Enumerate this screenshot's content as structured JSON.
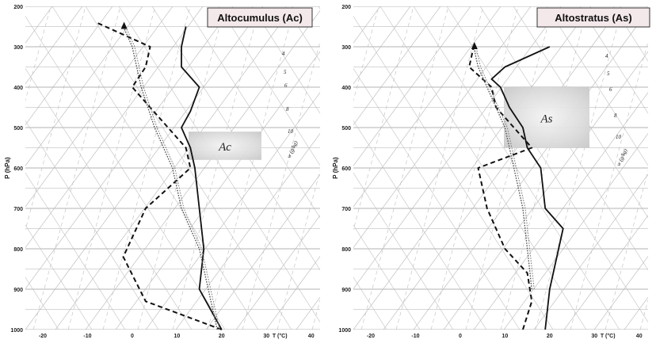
{
  "chart_data": [
    {
      "type": "line",
      "title": "Altocumulus (Ac)",
      "ylabel": "P (hPa)",
      "xlabel": "T (°C)",
      "x_ticks": [
        "-20",
        "-10",
        "0",
        "10",
        "20",
        "30",
        "40"
      ],
      "y_ticks": [
        "200",
        "300",
        "400",
        "500",
        "600",
        "700",
        "800",
        "900",
        "1000"
      ],
      "xlim": [
        -20,
        42
      ],
      "ylim": [
        1000,
        200
      ],
      "mixing_ratio_labels": [
        "4",
        "5",
        "6",
        "8",
        "10"
      ],
      "mixing_ratio_unit": "w (g/kg)",
      "cloud_label": "Ac",
      "cloud_layer_hpa": [
        510,
        580
      ],
      "series": [
        {
          "style": "solid",
          "x": [
            20,
            15,
            16,
            15,
            14,
            13,
            11,
            13,
            15,
            11,
            11,
            12
          ],
          "y": [
            1000,
            900,
            800,
            700,
            600,
            550,
            500,
            460,
            400,
            350,
            300,
            250
          ]
        },
        {
          "style": "dashed",
          "x": [
            20,
            3,
            -2,
            3,
            13,
            12,
            8,
            0,
            3,
            4,
            -8
          ],
          "y": [
            1000,
            930,
            820,
            700,
            600,
            550,
            500,
            400,
            350,
            300,
            240
          ]
        },
        {
          "style": "dotted",
          "x": [
            19,
            17,
            15,
            11,
            9,
            5,
            2,
            0,
            -2
          ],
          "y": [
            1000,
            900,
            800,
            700,
            600,
            500,
            400,
            300,
            250
          ]
        }
      ]
    },
    {
      "type": "line",
      "title": "Altostratus (As)",
      "ylabel": "P (hPa)",
      "xlabel": "T (°C)",
      "x_ticks": [
        "-20",
        "-10",
        "0",
        "10",
        "20",
        "30",
        "40"
      ],
      "y_ticks": [
        "200",
        "300",
        "400",
        "500",
        "600",
        "700",
        "800",
        "900",
        "1000"
      ],
      "xlim": [
        -20,
        42
      ],
      "ylim": [
        1000,
        200
      ],
      "mixing_ratio_labels": [
        "4",
        "5",
        "6",
        "8",
        "10"
      ],
      "mixing_ratio_unit": "w (g/kg)",
      "cloud_label": "As",
      "cloud_layer_hpa": [
        400,
        550
      ],
      "series": [
        {
          "style": "solid",
          "x": [
            19,
            20,
            23,
            19,
            18,
            15,
            14,
            11,
            9,
            7,
            10,
            20
          ],
          "y": [
            1000,
            900,
            750,
            700,
            600,
            550,
            500,
            450,
            400,
            380,
            350,
            300
          ]
        },
        {
          "style": "dashed",
          "x": [
            14,
            16,
            15,
            10,
            6,
            4,
            16,
            8,
            7,
            2,
            3
          ],
          "y": [
            1000,
            930,
            860,
            800,
            700,
            600,
            550,
            450,
            400,
            350,
            300
          ]
        },
        {
          "style": "dotted",
          "x": [
            16,
            15,
            14,
            12,
            10,
            8,
            6,
            4,
            3
          ],
          "y": [
            900,
            800,
            700,
            600,
            500,
            450,
            400,
            350,
            300
          ]
        }
      ]
    }
  ]
}
